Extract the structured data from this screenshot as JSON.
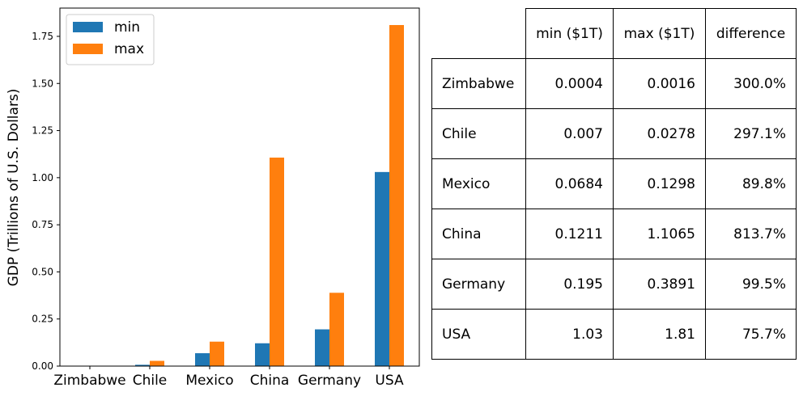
{
  "chart_data": {
    "type": "bar",
    "categories": [
      "Zimbabwe",
      "Chile",
      "Mexico",
      "China",
      "Germany",
      "USA"
    ],
    "series": [
      {
        "name": "min",
        "color": "#1f77b4",
        "values": [
          0.0004,
          0.007,
          0.0684,
          0.1211,
          0.195,
          1.03
        ]
      },
      {
        "name": "max",
        "color": "#ff7f0e",
        "values": [
          0.0016,
          0.0278,
          0.1298,
          1.1065,
          0.3891,
          1.81
        ]
      }
    ],
    "ylabel": "GDP (Trillions of U.S. Dollars)",
    "xlabel": "",
    "ylim": [
      0,
      1.9
    ],
    "yticks": [
      "0.00",
      "0.25",
      "0.50",
      "0.75",
      "1.00",
      "1.25",
      "1.50",
      "1.75"
    ],
    "legend_position": "top-left"
  },
  "table": {
    "headers": [
      "min ($1T)",
      "max ($1T)",
      "difference"
    ],
    "rows": [
      {
        "country": "Zimbabwe",
        "min": "0.0004",
        "max": "0.0016",
        "diff": "300.0%"
      },
      {
        "country": "Chile",
        "min": "0.007",
        "max": "0.0278",
        "diff": "297.1%"
      },
      {
        "country": "Mexico",
        "min": "0.0684",
        "max": "0.1298",
        "diff": "89.8%"
      },
      {
        "country": "China",
        "min": "0.1211",
        "max": "1.1065",
        "diff": "813.7%"
      },
      {
        "country": "Germany",
        "min": "0.195",
        "max": "0.3891",
        "diff": "99.5%"
      },
      {
        "country": "USA",
        "min": "1.03",
        "max": "1.81",
        "diff": "75.7%"
      }
    ]
  }
}
